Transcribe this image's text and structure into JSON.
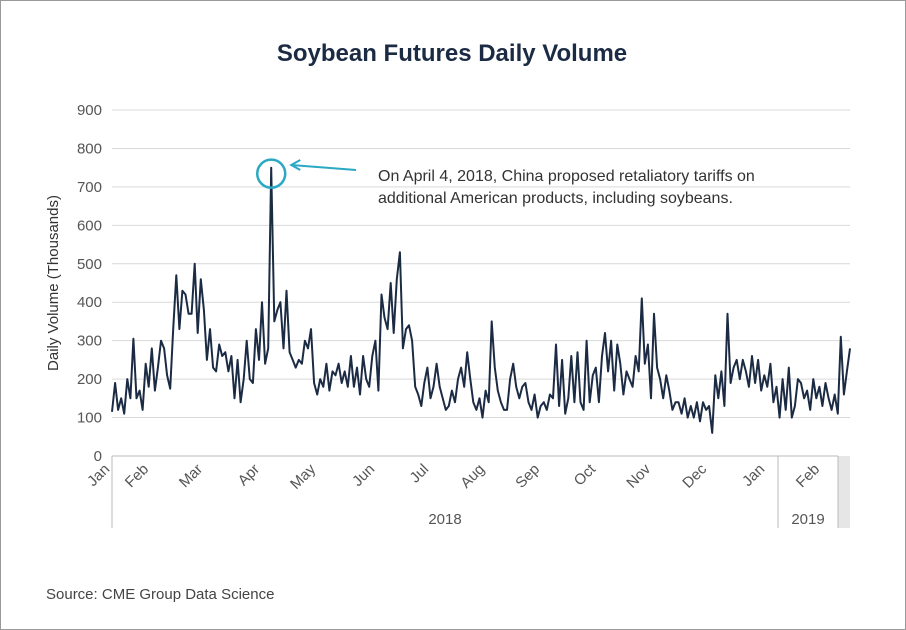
{
  "chart_data": {
    "type": "line",
    "title": "Soybean Futures Daily Volume",
    "ylabel": "Daily Volume (Thousands)",
    "xlabel": "",
    "ylim": [
      0,
      900
    ],
    "yticks": [
      "0",
      "100",
      "200",
      "300",
      "400",
      "500",
      "600",
      "700",
      "800",
      "900"
    ],
    "months": [
      "Jan",
      "Feb",
      "Mar",
      "Apr",
      "May",
      "Jun",
      "Jul",
      "Aug",
      "Sep",
      "Oct",
      "Nov",
      "Dec",
      "Jan",
      "Feb"
    ],
    "years": [
      "2018",
      "2019"
    ],
    "grid": true,
    "legend": "none",
    "line_color": "#1c2b44",
    "annotation_color": "#2aa8c4",
    "annotation": {
      "text_line1": "On April 4, 2018, China proposed retaliatory tariffs on",
      "text_line2": "additional American products, including soybeans."
    },
    "series": [
      {
        "values": [
          115,
          190,
          120,
          150,
          110,
          200,
          150,
          305,
          150,
          170,
          120,
          240,
          180,
          280,
          170,
          230,
          300,
          280,
          210,
          175,
          330,
          470,
          330,
          430,
          420,
          370,
          370,
          500,
          320,
          460,
          380,
          250,
          330,
          230,
          220,
          290,
          260,
          270,
          220,
          260,
          150,
          250,
          140,
          200,
          300,
          200,
          190,
          330,
          250,
          400,
          240,
          280,
          750,
          350,
          380,
          400,
          280,
          430,
          270,
          250,
          230,
          250,
          240,
          300,
          280,
          330,
          190,
          160,
          200,
          180,
          240,
          170,
          220,
          210,
          240,
          190,
          220,
          180,
          260,
          180,
          230,
          160,
          260,
          200,
          180,
          260,
          300,
          170,
          420,
          360,
          330,
          450,
          320,
          460,
          530,
          280,
          330,
          340,
          300,
          180,
          160,
          130,
          190,
          230,
          150,
          180,
          240,
          180,
          150,
          120,
          130,
          170,
          140,
          200,
          230,
          180,
          270,
          200,
          140,
          120,
          150,
          100,
          170,
          140,
          350,
          230,
          170,
          140,
          120,
          120,
          200,
          240,
          180,
          150,
          180,
          190,
          140,
          120,
          160,
          100,
          130,
          140,
          120,
          160,
          150,
          290,
          130,
          250,
          110,
          150,
          260,
          140,
          270,
          140,
          120,
          300,
          140,
          210,
          230,
          140,
          260,
          320,
          220,
          300,
          170,
          290,
          240,
          160,
          220,
          200,
          180,
          260,
          220,
          410,
          240,
          290,
          150,
          370,
          230,
          200,
          150,
          210,
          170,
          120,
          140,
          140,
          110,
          150,
          100,
          130,
          100,
          140,
          90,
          140,
          120,
          130,
          60,
          210,
          150,
          220,
          130,
          370,
          190,
          230,
          250,
          200,
          250,
          220,
          180,
          260,
          190,
          250,
          170,
          210,
          180,
          240,
          140,
          180,
          100,
          200,
          120,
          230,
          100,
          130,
          200,
          190,
          150,
          170,
          120,
          200,
          150,
          180,
          130,
          190,
          150,
          120,
          160,
          110,
          310,
          160,
          220,
          280
        ]
      }
    ]
  }
}
